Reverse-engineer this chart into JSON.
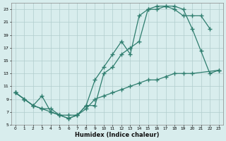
{
  "background_color": "#d8eded",
  "grid_color": "#b0cccc",
  "line_color": "#2e7d6e",
  "xlabel": "Humidex (Indice chaleur)",
  "xlim": [
    -0.5,
    23.5
  ],
  "ylim": [
    5,
    24
  ],
  "xtick_vals": [
    0,
    1,
    2,
    3,
    4,
    5,
    6,
    7,
    8,
    9,
    10,
    11,
    12,
    13,
    14,
    15,
    16,
    17,
    18,
    19,
    20,
    21,
    22,
    23
  ],
  "ytick_vals": [
    5,
    7,
    9,
    11,
    13,
    15,
    17,
    19,
    21,
    23
  ],
  "line1_x": [
    0,
    1,
    2,
    3,
    4,
    5,
    6,
    7,
    8,
    9,
    10,
    11,
    12,
    13,
    14,
    15,
    16,
    17,
    18,
    19,
    20,
    21,
    22
  ],
  "line1_y": [
    10,
    9,
    8,
    9.5,
    7,
    6.5,
    6,
    6.5,
    8,
    12,
    14,
    16,
    18,
    16,
    22,
    23,
    23.5,
    23.5,
    23,
    22,
    22,
    22,
    20
  ],
  "line2_x": [
    0,
    1,
    2,
    3,
    4,
    5,
    6,
    7,
    8,
    9,
    10,
    11,
    12,
    13,
    14,
    15,
    16,
    17,
    18,
    19,
    20,
    21,
    22,
    23
  ],
  "line2_y": [
    10,
    9,
    8,
    7.5,
    7,
    6.5,
    6,
    6.5,
    8,
    8,
    13,
    14,
    16,
    17,
    18,
    23,
    23,
    23.5,
    23.5,
    23,
    20,
    16.5,
    13,
    13.5
  ],
  "line3_x": [
    0,
    1,
    2,
    3,
    4,
    5,
    6,
    7,
    8,
    9,
    10,
    11,
    12,
    13,
    14,
    15,
    16,
    17,
    18,
    19,
    20,
    23
  ],
  "line3_y": [
    10,
    9,
    8,
    7.5,
    7.5,
    6.5,
    6.5,
    6.5,
    7.5,
    9,
    9.5,
    10,
    10.5,
    11,
    11.5,
    12,
    12,
    12.5,
    13,
    13,
    13,
    13.5
  ]
}
